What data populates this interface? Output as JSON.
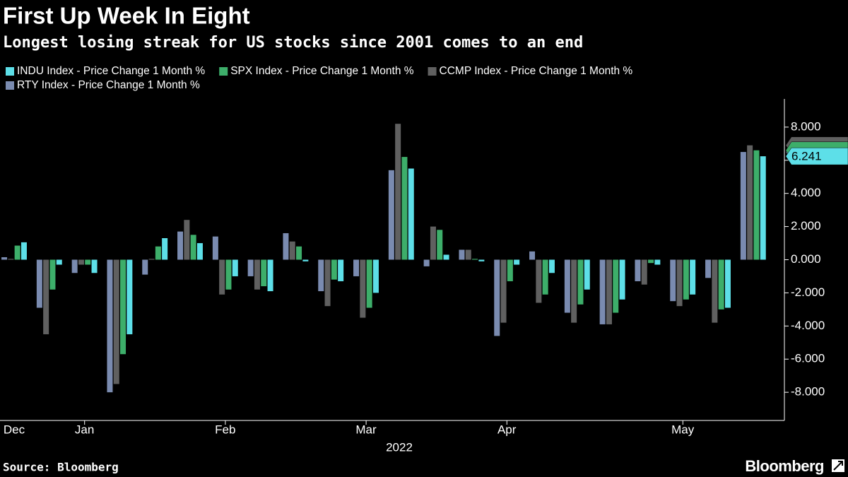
{
  "chart_data": {
    "type": "bar",
    "title": "First Up Week In Eight",
    "subtitle": "Longest losing streak for US stocks since 2001 comes to an end",
    "source": "Source: Bloomberg",
    "brand": "Bloomberg",
    "xlabel": "2022",
    "categories": [
      "Dec",
      null,
      "Jan",
      null,
      null,
      null,
      "Feb",
      null,
      null,
      null,
      "Mar",
      null,
      null,
      null,
      "Apr",
      null,
      null,
      null,
      null,
      "May",
      null,
      null
    ],
    "series": [
      {
        "name": "INDU Index - Price Change 1 Month %",
        "color": "#5ddfe8",
        "values": [
          1.05,
          -0.3,
          -0.8,
          -4.5,
          1.3,
          1.0,
          -1.0,
          -1.9,
          -0.1,
          -1.3,
          -2.0,
          5.5,
          0.3,
          -0.1,
          -0.3,
          -0.8,
          -1.8,
          -2.4,
          -0.3,
          -2.1,
          -2.9,
          6.241
        ]
      },
      {
        "name": "SPX Index - Price Change 1 Month %",
        "color": "#3dae6a",
        "values": [
          0.85,
          -1.8,
          -0.3,
          -5.7,
          0.8,
          1.5,
          -1.8,
          -1.6,
          0.8,
          -1.2,
          -2.9,
          6.2,
          1.8,
          0.05,
          -1.3,
          -2.1,
          -2.7,
          -3.2,
          -0.2,
          -2.4,
          -3.0,
          6.6
        ]
      },
      {
        "name": "CCMP Index - Price Change 1 Month %",
        "color": "#606060",
        "values": [
          0.05,
          -4.5,
          -0.3,
          -7.5,
          0.05,
          2.4,
          -2.1,
          -1.8,
          1.1,
          -2.8,
          -3.5,
          8.2,
          2.0,
          0.6,
          -3.8,
          -2.6,
          -3.8,
          -3.9,
          -1.5,
          -2.8,
          -3.8,
          6.9
        ]
      },
      {
        "name": "RTY Index - Price Change 1 Month %",
        "color": "#7a8bb0",
        "values": [
          0.15,
          -2.9,
          -0.8,
          -8.0,
          -0.9,
          1.7,
          1.4,
          -1.0,
          1.6,
          -1.9,
          -1.0,
          5.4,
          -0.4,
          0.6,
          -4.6,
          0.5,
          -3.2,
          -3.9,
          -1.3,
          -2.5,
          -1.1,
          6.5
        ]
      }
    ],
    "ylim": [
      -9.7,
      9.7
    ],
    "yticks": [
      {
        "value": -8,
        "label": "-8.000"
      },
      {
        "value": -6,
        "label": "-6.000"
      },
      {
        "value": -4,
        "label": "-4.000"
      },
      {
        "value": -2,
        "label": "-2.000"
      },
      {
        "value": 0,
        "label": "0.000"
      },
      {
        "value": 2,
        "label": "2.000"
      },
      {
        "value": 4,
        "label": "4.000"
      },
      {
        "value": 6,
        "label": "6.000"
      },
      {
        "value": 8,
        "label": "8.000"
      }
    ],
    "grid": false
  }
}
